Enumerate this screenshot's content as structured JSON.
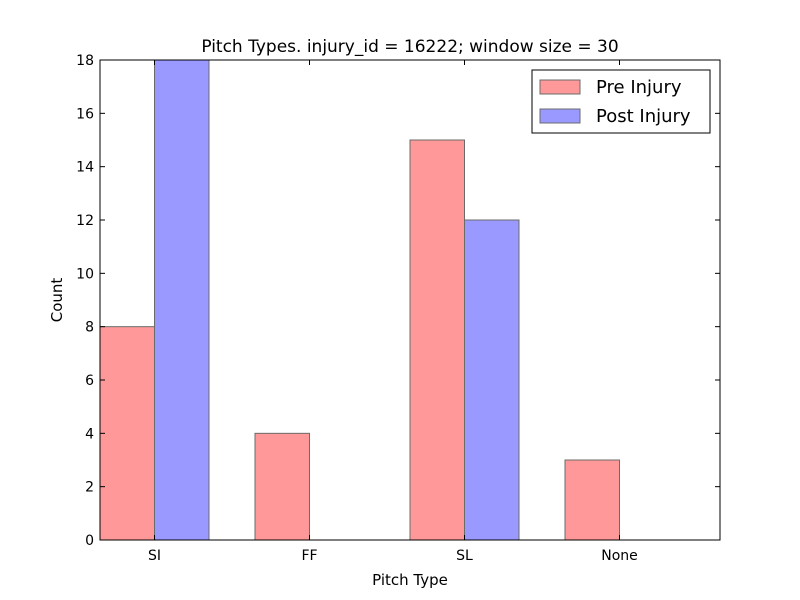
{
  "chart_data": {
    "type": "bar",
    "title": "Pitch Types. injury_id = 16222; window size = 30",
    "xlabel": "Pitch Type",
    "ylabel": "Count",
    "categories": [
      "SI",
      "FF",
      "SL",
      "None"
    ],
    "ylim": [
      0,
      18
    ],
    "yticks": [
      "0",
      "2",
      "4",
      "6",
      "8",
      "10",
      "12",
      "14",
      "16",
      "18"
    ],
    "grid": false,
    "legend_position": "top-right",
    "series": [
      {
        "name": "Pre Injury",
        "values": [
          8,
          4,
          15,
          3
        ],
        "color": "#ff9999"
      },
      {
        "name": "Post Injury",
        "values": [
          18,
          0,
          12,
          0
        ],
        "color": "#9999ff"
      }
    ]
  }
}
